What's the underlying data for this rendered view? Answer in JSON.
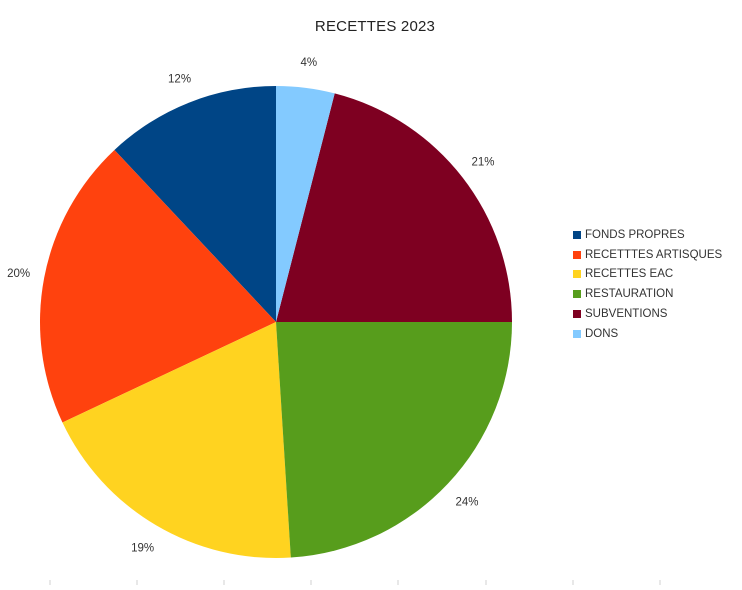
{
  "chart_data": {
    "type": "pie",
    "title": "RECETTES 2023",
    "legend_position": "right",
    "slices": [
      {
        "label": "FONDS PROPRES",
        "value": 12,
        "value_label": "12%",
        "color": "#004586"
      },
      {
        "label": "RECETTTES ARTISQUES",
        "value": 20,
        "value_label": "20%",
        "color": "#ff420e"
      },
      {
        "label": "RECETTES EAC",
        "value": 19,
        "value_label": "19%",
        "color": "#ffd320"
      },
      {
        "label": "RESTAURATION",
        "value": 24,
        "value_label": "24%",
        "color": "#579d1c"
      },
      {
        "label": "SUBVENTIONS",
        "value": 21,
        "value_label": "21%",
        "color": "#7e0021"
      },
      {
        "label": "DONS",
        "value": 4,
        "value_label": "4%",
        "color": "#83caff"
      }
    ]
  }
}
